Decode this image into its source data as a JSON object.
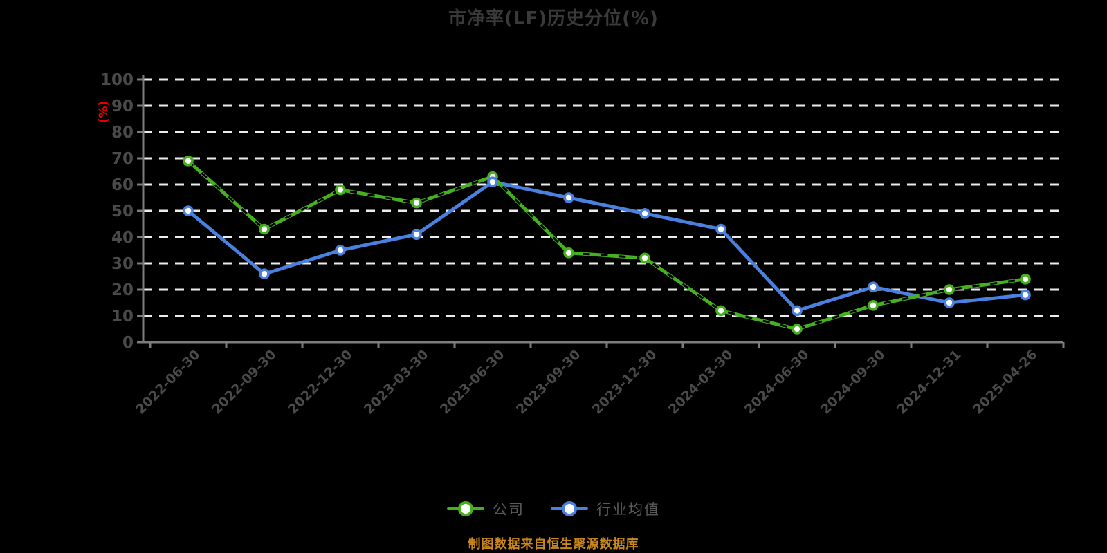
{
  "page": {
    "title": "市净率(LF)历史分位(%)",
    "source_note": "制图数据来自恒生聚源数据库"
  },
  "y_axis": {
    "unit": "(%)"
  },
  "chart_data": {
    "type": "line",
    "title": "市净率(LF)历史分位(%)",
    "xlabel": "",
    "ylabel": "(%)",
    "ylim": [
      0,
      100
    ],
    "y_ticks": [
      0,
      10,
      20,
      30,
      40,
      50,
      60,
      70,
      80,
      90,
      100
    ],
    "grid": true,
    "grid_style": "white-dashed-horizontal",
    "legend_position": "bottom",
    "categories": [
      "2022-06-30",
      "2022-09-30",
      "2022-12-30",
      "2023-03-30",
      "2023-06-30",
      "2023-09-30",
      "2023-12-30",
      "2024-03-30",
      "2024-06-30",
      "2024-09-30",
      "2024-12-31",
      "2025-04-26"
    ],
    "series": [
      {
        "name": "公司",
        "color": "#45b11f",
        "marker": "white-filled-circle",
        "line_style": "solid-with-black-dash-overlay",
        "values": [
          69,
          43,
          58,
          53,
          63,
          34,
          32,
          12,
          5,
          14,
          20,
          24
        ]
      },
      {
        "name": "行业均值",
        "color": "#4a80df",
        "marker": "white-filled-circle",
        "line_style": "solid",
        "values": [
          50,
          26,
          35,
          41,
          61,
          55,
          49,
          43,
          12,
          21,
          15,
          18
        ]
      }
    ],
    "source_note": "制图数据来自恒生聚源数据库"
  },
  "colors": {
    "background": "#000000",
    "company_series": "#45b11f",
    "industry_series": "#4a80df",
    "grid": "#ececec",
    "axis": "#7d7d7d",
    "title_text": "#3a3a3a",
    "axis_label_text": "#4a4a4a",
    "legend_text": "#5a5a5a",
    "unit_label": "#e80000",
    "source_note_text": "#c9861b",
    "marker_fill": "#ffffff",
    "company_dash_overlay": "#000000"
  }
}
